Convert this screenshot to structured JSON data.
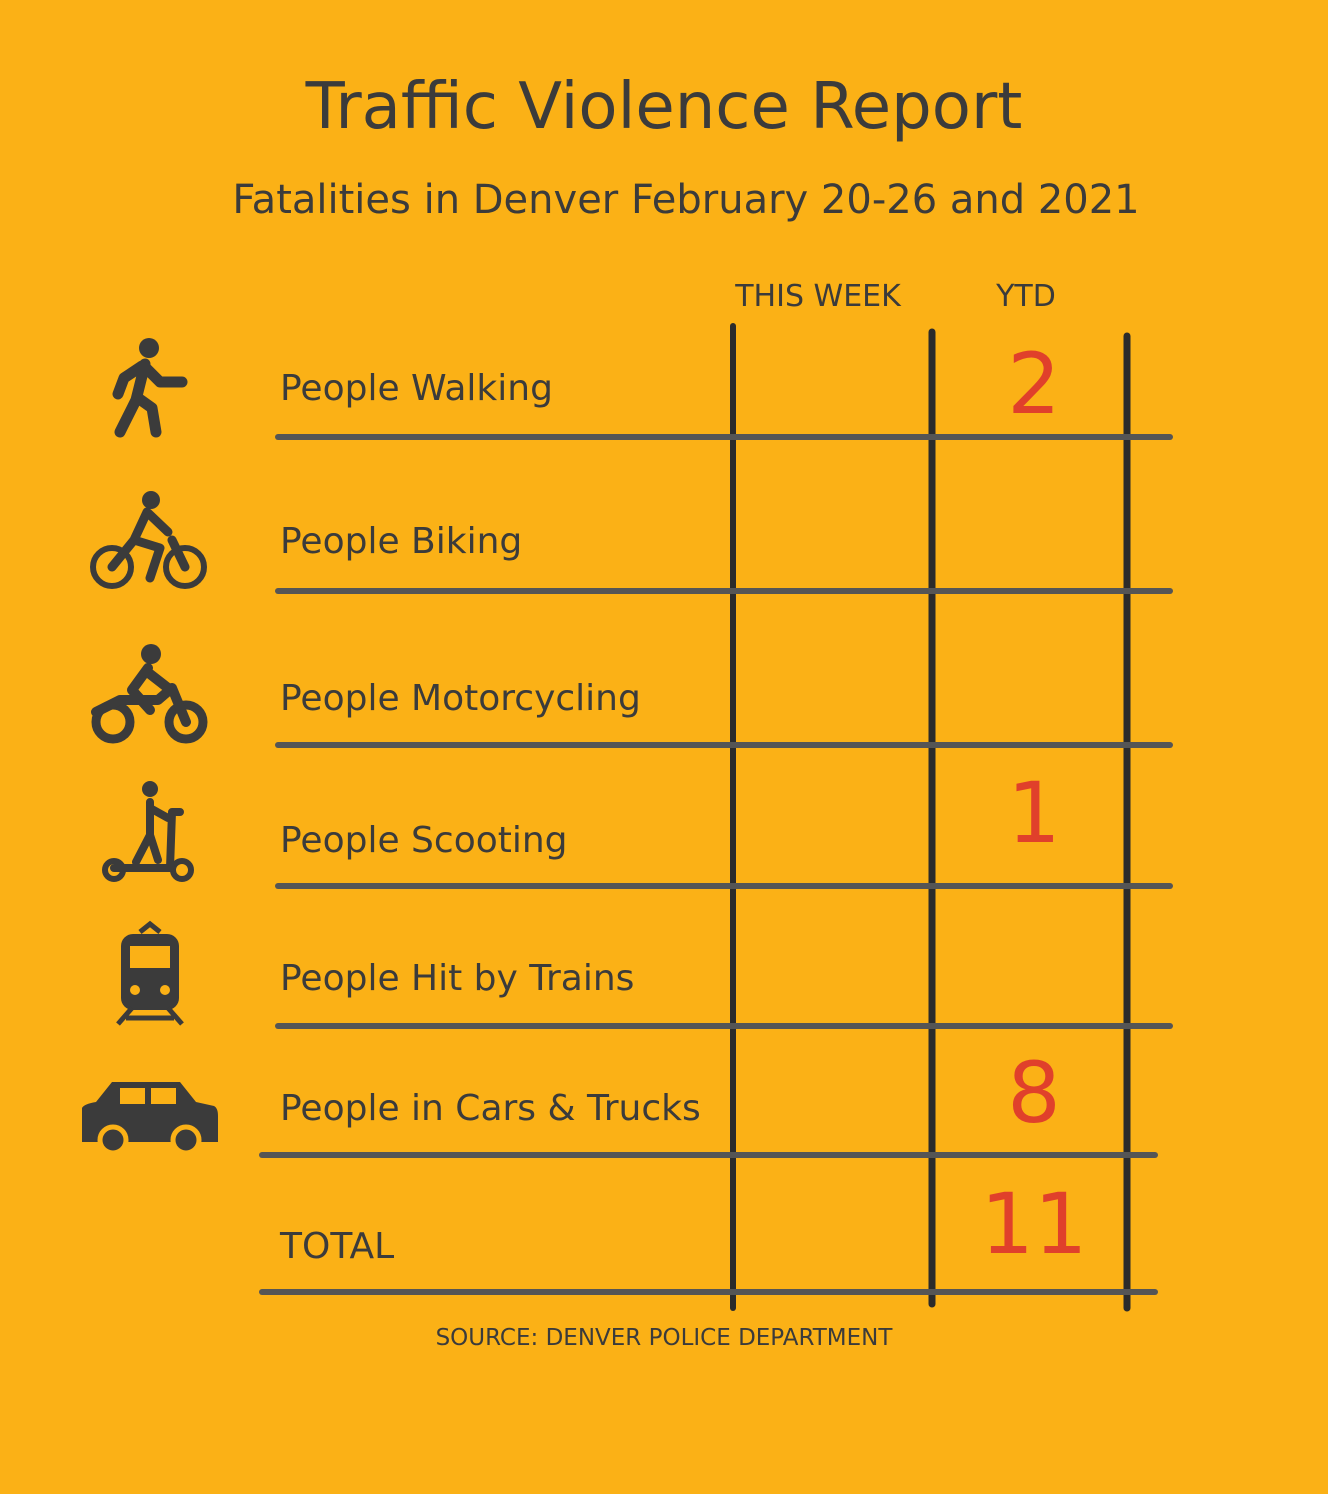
{
  "header": {
    "title": "Traffic Violence Report",
    "subtitle": "Fatalities in Denver February 20-26 and 2021"
  },
  "table": {
    "columns": [
      "THIS WEEK",
      "YTD"
    ],
    "rows": [
      {
        "label": "People Walking",
        "this_week": null,
        "ytd": 2
      },
      {
        "label": "People Biking",
        "this_week": null,
        "ytd": null
      },
      {
        "label": "People Motorcycling",
        "this_week": null,
        "ytd": null
      },
      {
        "label": "People Scooting",
        "this_week": null,
        "ytd": 1
      },
      {
        "label": "People Hit by Trains",
        "this_week": null,
        "ytd": null
      },
      {
        "label": "People in Cars & Trucks",
        "this_week": null,
        "ytd": 8
      },
      {
        "label": "TOTAL",
        "this_week": null,
        "ytd": 11
      }
    ]
  },
  "footer": {
    "source": "SOURCE: DENVER POLICE DEPARTMENT"
  }
}
